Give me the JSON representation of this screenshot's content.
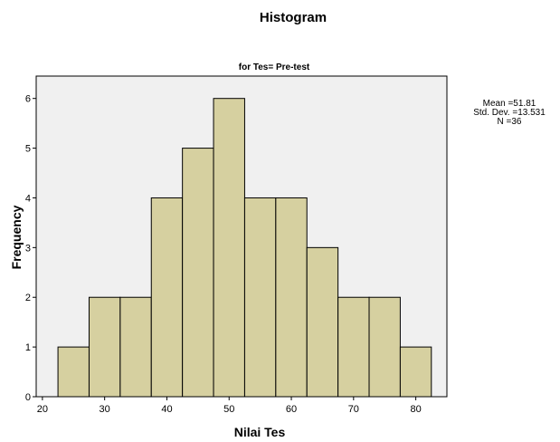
{
  "chart_data": {
    "type": "bar",
    "title": "Histogram",
    "subtitle": "for Tes= Pre-test",
    "xlabel": "Nilai Tes",
    "ylabel": "Frequency",
    "bin_edges": [
      22.5,
      27.5,
      32.5,
      37.5,
      42.5,
      47.5,
      52.5,
      57.5,
      62.5,
      67.5,
      72.5,
      77.5,
      82.5
    ],
    "values": [
      1,
      2,
      2,
      4,
      5,
      6,
      4,
      4,
      3,
      2,
      2,
      1
    ],
    "xlim": [
      19,
      85
    ],
    "ylim": [
      0,
      6.45
    ],
    "x_ticks": [
      20,
      30,
      40,
      50,
      60,
      70,
      80
    ],
    "y_ticks": [
      0,
      1,
      2,
      3,
      4,
      5,
      6
    ],
    "bar_color": "#d6d0a0",
    "plot_background": "#f0f0f0",
    "stats": {
      "mean": "Mean =51.81",
      "std_dev": "Std. Dev. =13.531",
      "n": "N =36"
    }
  }
}
